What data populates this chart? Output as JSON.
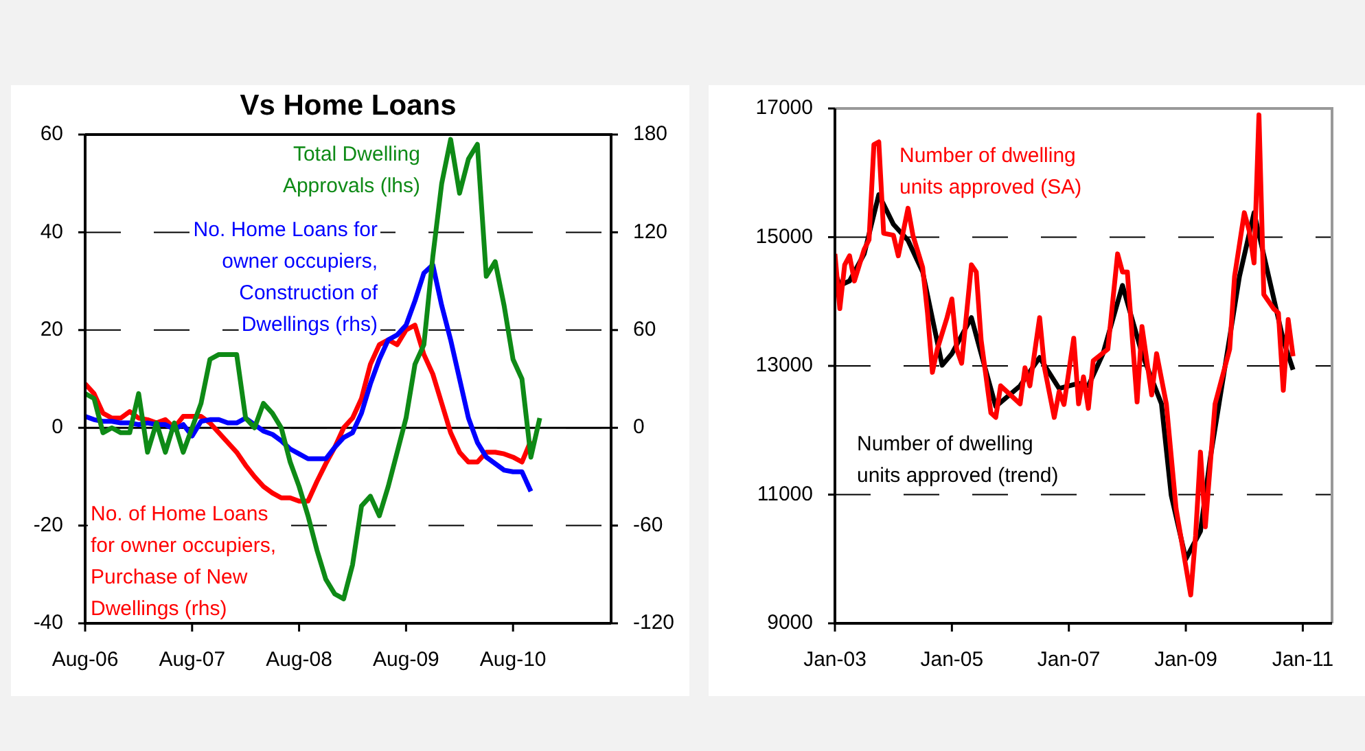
{
  "chart_data": [
    {
      "type": "line",
      "title": "Vs Home Loans",
      "xlim": [
        "2006-08",
        "2011-07"
      ],
      "xticks": [
        {
          "value": "2006-08",
          "label": "Aug-06"
        },
        {
          "value": "2007-08",
          "label": "Aug-07"
        },
        {
          "value": "2008-08",
          "label": "Aug-08"
        },
        {
          "value": "2009-08",
          "label": "Aug-09"
        },
        {
          "value": "2010-08",
          "label": "Aug-10"
        }
      ],
      "ylim": [
        -40,
        60
      ],
      "yticks": [
        -40,
        -20,
        0,
        20,
        40,
        60
      ],
      "y2lim": [
        -120,
        180
      ],
      "y2ticks": [
        -120,
        -60,
        0,
        60,
        120,
        180
      ],
      "grid": "y",
      "ref_lines": [
        {
          "axis": "y",
          "value": 0,
          "color": "#000000",
          "line_style": "solid"
        }
      ],
      "x": [
        "2006-08",
        "2006-09",
        "2006-10",
        "2006-11",
        "2006-12",
        "2007-01",
        "2007-02",
        "2007-03",
        "2007-04",
        "2007-05",
        "2007-06",
        "2007-07",
        "2007-08",
        "2007-09",
        "2007-10",
        "2007-11",
        "2007-12",
        "2008-01",
        "2008-02",
        "2008-03",
        "2008-04",
        "2008-05",
        "2008-06",
        "2008-07",
        "2008-08",
        "2008-09",
        "2008-10",
        "2008-11",
        "2008-12",
        "2009-01",
        "2009-02",
        "2009-03",
        "2009-04",
        "2009-05",
        "2009-06",
        "2009-07",
        "2009-08",
        "2009-09",
        "2009-10",
        "2009-11",
        "2009-12",
        "2010-01",
        "2010-02",
        "2010-03",
        "2010-04",
        "2010-05",
        "2010-06",
        "2010-07",
        "2010-08",
        "2010-09",
        "2010-10",
        "2010-11"
      ],
      "series": [
        {
          "name": "Total Dwelling Approvals (lhs)",
          "color": "#0e8a16",
          "values": [
            7,
            6,
            -1,
            0,
            -1,
            -1,
            7,
            -5,
            1,
            -5,
            1,
            -5,
            0,
            5,
            14,
            15,
            15,
            15,
            2,
            0,
            5,
            3,
            0,
            -7,
            -12,
            -18,
            -25,
            -31,
            -34,
            -35,
            -28,
            -16,
            -14,
            -18,
            -12,
            -5,
            2,
            13,
            17,
            35,
            50,
            59,
            48,
            55,
            58,
            31,
            34,
            25,
            14,
            10,
            -6,
            2
          ]
        },
        {
          "name": "No. Home Loans for owner occupiers, Construction of Dwellings (rhs)",
          "color": "#0000ff",
          "axis": "y2",
          "values": [
            7,
            5,
            4,
            4,
            3,
            3,
            2,
            3,
            2,
            2,
            -1,
            2,
            -5,
            4,
            5,
            5,
            3,
            3,
            6,
            2,
            -2,
            -4,
            -8,
            -13,
            -16,
            -19,
            -19,
            -19,
            -12,
            -6,
            -3,
            9,
            27,
            42,
            54,
            57,
            63,
            78,
            95,
            100,
            75,
            54,
            30,
            6,
            -9,
            -18,
            -22,
            -26,
            -27,
            -27,
            -39,
            null
          ]
        },
        {
          "name": "No. of Home Loans for owner occupiers, Purchase of New Dwellings (rhs)",
          "color": "#ff0000",
          "axis": "y2",
          "values": [
            27,
            21,
            9,
            6,
            6,
            10,
            6,
            5,
            3,
            5,
            0,
            7,
            7,
            7,
            3,
            -3,
            -9,
            -15,
            -23,
            -30,
            -36,
            -40,
            -43,
            -43,
            -45,
            -45,
            -33,
            -22,
            -12,
            0,
            6,
            18,
            39,
            51,
            54,
            51,
            60,
            63,
            45,
            33,
            15,
            -3,
            -15,
            -21,
            -21,
            -15,
            -15,
            -16,
            -18,
            -21,
            -8,
            null
          ]
        }
      ]
    },
    {
      "type": "line",
      "xlim": [
        "2003-01",
        "2011-07"
      ],
      "xticks": [
        {
          "value": "2003-01",
          "label": "Jan-03"
        },
        {
          "value": "2005-01",
          "label": "Jan-05"
        },
        {
          "value": "2007-01",
          "label": "Jan-07"
        },
        {
          "value": "2009-01",
          "label": "Jan-09"
        },
        {
          "value": "2011-01",
          "label": "Jan-11"
        }
      ],
      "ylim": [
        9000,
        17000
      ],
      "yticks": [
        9000,
        11000,
        13000,
        15000,
        17000
      ],
      "grid": "y",
      "series": [
        {
          "name": "Number of dwelling units approved (SA)",
          "color": "#ff0000",
          "x": [
            "2003-01",
            "2003-02",
            "2003-03",
            "2003-04",
            "2003-05",
            "2003-07",
            "2003-08",
            "2003-09",
            "2003-10",
            "2003-11",
            "2004-01",
            "2004-02",
            "2004-04",
            "2004-05",
            "2004-07",
            "2004-08",
            "2004-09",
            "2004-10",
            "2004-12",
            "2005-01",
            "2005-02",
            "2005-03",
            "2005-05",
            "2005-06",
            "2005-07",
            "2005-09",
            "2005-10",
            "2005-11",
            "2006-01",
            "2006-03",
            "2006-04",
            "2006-05",
            "2006-07",
            "2006-08",
            "2006-10",
            "2006-11",
            "2006-12",
            "2007-02",
            "2007-03",
            "2007-04",
            "2007-05",
            "2007-06",
            "2007-09",
            "2007-11",
            "2007-12",
            "2008-01",
            "2008-03",
            "2008-04",
            "2008-06",
            "2008-07",
            "2008-09",
            "2008-11",
            "2009-02",
            "2009-03",
            "2009-04",
            "2009-05",
            "2009-07",
            "2009-10",
            "2009-11",
            "2010-01",
            "2010-02",
            "2010-03",
            "2010-04",
            "2010-05",
            "2010-07",
            "2010-08",
            "2010-09",
            "2010-10",
            "2010-11"
          ],
          "values": [
            14740,
            13890,
            14570,
            14710,
            14320,
            14810,
            14960,
            16440,
            16480,
            15060,
            15030,
            14710,
            15450,
            15030,
            14530,
            13820,
            12900,
            13260,
            13750,
            14040,
            13260,
            13040,
            14570,
            14460,
            13400,
            12270,
            12200,
            12690,
            12550,
            12410,
            12970,
            12690,
            13750,
            12970,
            12200,
            12600,
            12400,
            13430,
            12410,
            12830,
            12340,
            13080,
            13260,
            14740,
            14460,
            14460,
            12440,
            13610,
            12550,
            13190,
            12410,
            10780,
            9440,
            10360,
            11660,
            10500,
            12410,
            13260,
            14390,
            15380,
            15100,
            14600,
            16900,
            14110,
            13890,
            13820,
            12620,
            13720,
            13150
          ]
        },
        {
          "name": "Number of dwelling units approved (trend)",
          "color": "#000000",
          "x": [
            "2003-01",
            "2003-02",
            "2003-04",
            "2003-07",
            "2003-10",
            "2004-01",
            "2004-04",
            "2004-07",
            "2004-11",
            "2005-01",
            "2005-05",
            "2005-07",
            "2005-10",
            "2006-03",
            "2006-07",
            "2006-11",
            "2007-03",
            "2007-05",
            "2007-08",
            "2007-12",
            "2008-04",
            "2008-08",
            "2008-10",
            "2009-01",
            "2009-04",
            "2009-06",
            "2009-09",
            "2009-12",
            "2010-03",
            "2010-06",
            "2010-09",
            "2010-11"
          ],
          "values": [
            14460,
            14250,
            14320,
            14740,
            15660,
            15200,
            14950,
            14460,
            13010,
            13190,
            13750,
            13190,
            12370,
            12690,
            13130,
            12650,
            12730,
            12690,
            13190,
            14250,
            13190,
            12410,
            10990,
            10000,
            10430,
            11560,
            12970,
            14390,
            15380,
            14390,
            13400,
            12940
          ]
        }
      ]
    }
  ]
}
